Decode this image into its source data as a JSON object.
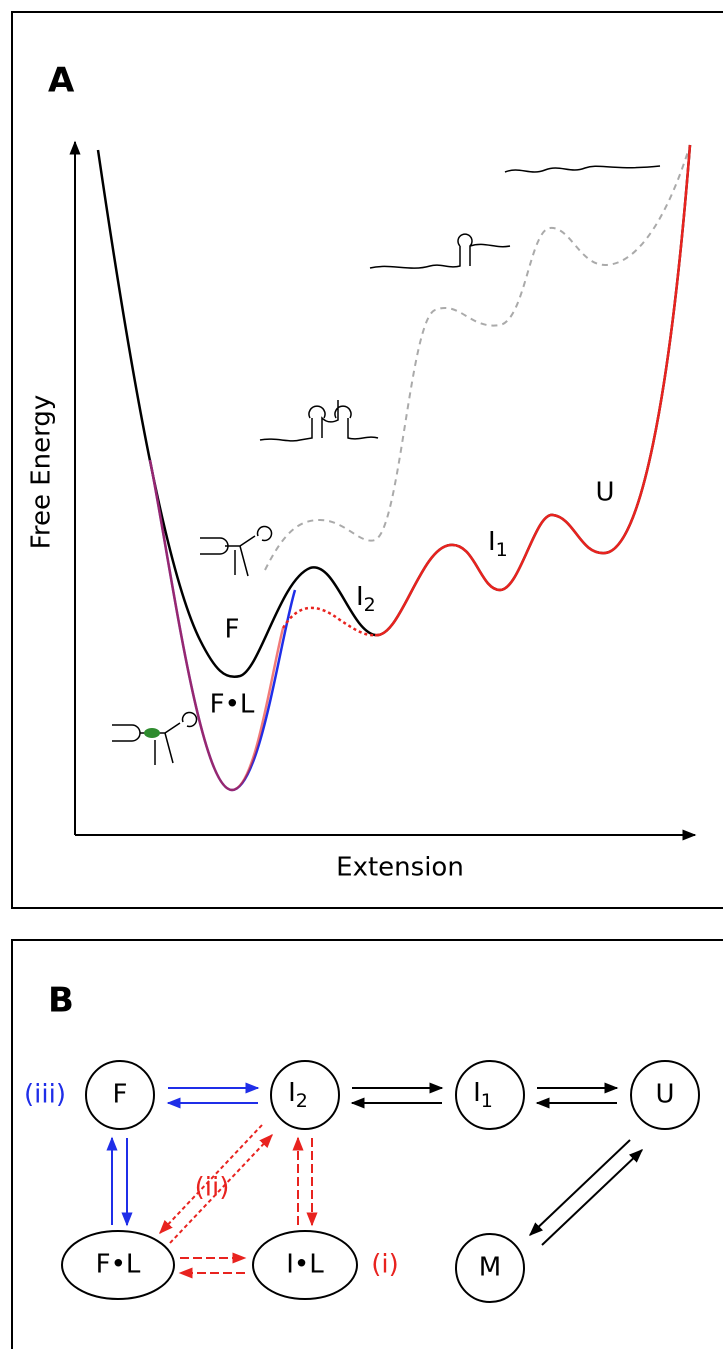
{
  "panels": [
    {
      "label": "A",
      "y_axis_label": "Free Energy",
      "x_axis_label": "Extension",
      "states": [
        {
          "label": "F"
        },
        {
          "label": "F•L"
        },
        {
          "label": "I",
          "subscript": "2"
        },
        {
          "label": "I",
          "subscript": "1"
        },
        {
          "label": "U"
        }
      ]
    },
    {
      "label": "B",
      "nodes": [
        {
          "label": "F"
        },
        {
          "label": "I",
          "subscript": "2"
        },
        {
          "label": "I",
          "subscript": "1"
        },
        {
          "label": "U"
        },
        {
          "label": "F•L"
        },
        {
          "label": "I•L"
        },
        {
          "label": "M"
        }
      ],
      "pathway_labels": [
        "(iii)",
        "(ii)",
        "(i)"
      ]
    }
  ]
}
